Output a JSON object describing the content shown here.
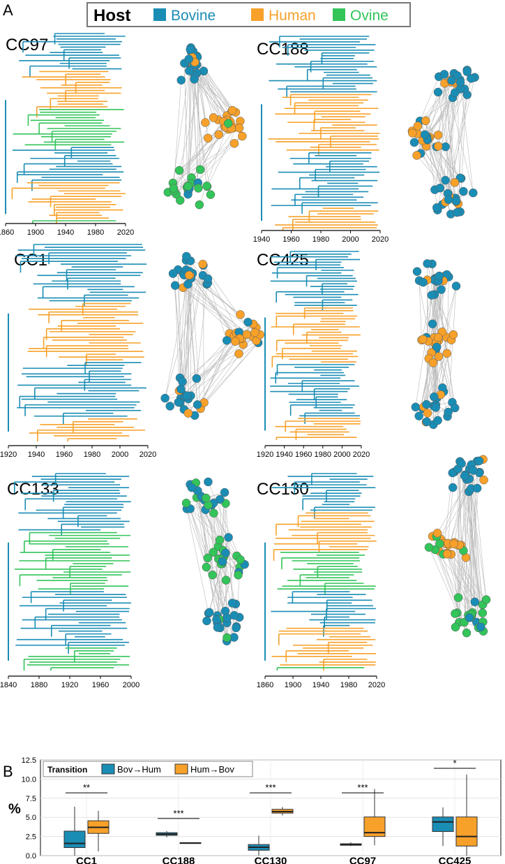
{
  "figure": {
    "panel_a_label": "A",
    "panel_b_label": "B",
    "host_legend": {
      "title": "Host",
      "entries": [
        {
          "label": "Bovine",
          "color": "#1a8db5"
        },
        {
          "label": "Human",
          "color": "#f7a12a"
        },
        {
          "label": "Ovine",
          "color": "#33c45a"
        }
      ]
    },
    "clusters": [
      {
        "name": "CC97",
        "axis_ticks": [
          "1860",
          "1900",
          "1940",
          "1980",
          "2020"
        ],
        "network_colors": [
          "bovine",
          "human",
          "ovine"
        ]
      },
      {
        "name": "CC188",
        "axis_ticks": [
          "1940",
          "1960",
          "1980",
          "2000",
          "2020"
        ],
        "network_colors": [
          "bovine",
          "human"
        ]
      },
      {
        "name": "CC1",
        "axis_ticks": [
          "1920",
          "1940",
          "1960",
          "1980",
          "2000",
          "2020"
        ],
        "network_colors": [
          "bovine",
          "human"
        ]
      },
      {
        "name": "CC425",
        "axis_ticks": [
          "1920",
          "1940",
          "1960",
          "1980",
          "2000",
          "2020"
        ],
        "network_colors": [
          "bovine",
          "human"
        ]
      },
      {
        "name": "CC133",
        "axis_ticks": [
          "1840",
          "1880",
          "1920",
          "1960",
          "2000"
        ],
        "network_colors": [
          "bovine",
          "ovine"
        ]
      },
      {
        "name": "CC130",
        "axis_ticks": [
          "1860",
          "1900",
          "1940",
          "1980",
          "2020"
        ],
        "network_colors": [
          "bovine",
          "human",
          "ovine"
        ]
      }
    ]
  },
  "chart_data": {
    "type": "box",
    "ylabel": "%",
    "ylim": [
      0,
      12.5
    ],
    "y_ticks": [
      "0.0",
      "2.5",
      "5.0",
      "7.5",
      "10.0",
      "12.5"
    ],
    "legend": {
      "title": "Transition",
      "placement": "top-left"
    },
    "categories": [
      "CC1",
      "CC188",
      "CC130",
      "CC97",
      "CC425"
    ],
    "series": [
      {
        "name": "Bov→Hum",
        "color": "#1a8db5",
        "boxes": [
          {
            "min": 0.0,
            "q1": 1.05,
            "median": 1.6,
            "q3": 3.2,
            "max": 6.4
          },
          {
            "min": 2.4,
            "q1": 2.65,
            "median": 2.8,
            "q3": 3.0,
            "max": 3.2
          },
          {
            "min": 0.0,
            "q1": 0.7,
            "median": 1.1,
            "q3": 1.45,
            "max": 2.6
          },
          {
            "min": 1.25,
            "q1": 1.35,
            "median": 1.45,
            "q3": 1.55,
            "max": 1.75
          },
          {
            "min": 1.25,
            "q1": 3.15,
            "median": 4.4,
            "q3": 5.05,
            "max": 6.3
          }
        ]
      },
      {
        "name": "Hum→Bov",
        "color": "#f7a12a",
        "boxes": [
          {
            "min": 0.55,
            "q1": 2.9,
            "median": 3.7,
            "q3": 4.55,
            "max": 5.85
          },
          {
            "min": 1.6,
            "q1": 1.63,
            "median": 1.65,
            "q3": 1.67,
            "max": 1.7
          },
          {
            "min": 5.25,
            "q1": 5.55,
            "median": 5.75,
            "q3": 6.05,
            "max": 6.35
          },
          {
            "min": 1.35,
            "q1": 2.5,
            "median": 3.0,
            "q3": 5.05,
            "max": 8.7
          },
          {
            "min": 0.0,
            "q1": 1.25,
            "median": 2.5,
            "q3": 5.05,
            "max": 10.6
          }
        ]
      }
    ],
    "significance": [
      {
        "category": "CC1",
        "label": "**",
        "y": 8.2
      },
      {
        "category": "CC188",
        "label": "***",
        "y": 4.85
      },
      {
        "category": "CC130",
        "label": "***",
        "y": 8.2
      },
      {
        "category": "CC97",
        "label": "***",
        "y": 8.2
      },
      {
        "category": "CC425",
        "label": "*",
        "y": 11.4
      }
    ],
    "grid": true
  }
}
